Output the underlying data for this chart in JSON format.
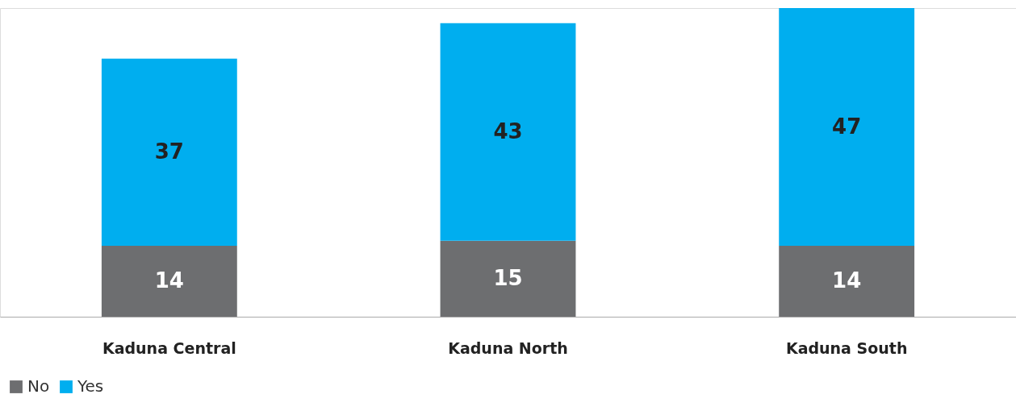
{
  "chart_data": {
    "type": "bar",
    "stacked": true,
    "data_labels": true,
    "legend": "bottom",
    "grid": false,
    "categories": [
      "Kaduna Central",
      "Kaduna North",
      "Kaduna South"
    ],
    "series": [
      {
        "name": "No",
        "color": "#6d6e70",
        "values": [
          14,
          15,
          14
        ]
      },
      {
        "name": "Yes",
        "color": "#00aeef",
        "values": [
          37,
          43,
          47
        ]
      }
    ]
  }
}
